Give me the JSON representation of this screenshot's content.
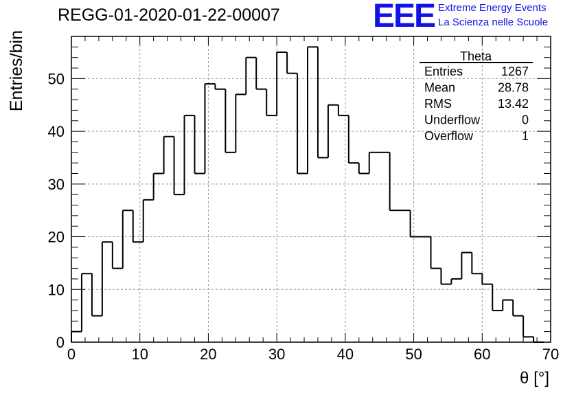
{
  "header": {
    "title": "REGG-01-2020-01-22-00007",
    "logo_text": "EEE",
    "logo_line1": "Extreme Energy Events",
    "logo_line2": "La Scienza nelle Scuole",
    "logo_color": "#1212e6"
  },
  "chart_data": {
    "type": "histogram",
    "xlabel": "θ [°]",
    "ylabel": "Entries/bin",
    "xlim": [
      0,
      70
    ],
    "ylim": [
      0,
      58
    ],
    "grid": true,
    "bin_width": 1.5,
    "x_ticks": [
      0,
      10,
      20,
      30,
      40,
      50,
      60,
      70
    ],
    "y_ticks": [
      0,
      10,
      20,
      30,
      40,
      50
    ],
    "values": [
      2,
      13,
      5,
      19,
      14,
      25,
      19,
      27,
      32,
      39,
      28,
      43,
      32,
      49,
      48,
      36,
      47,
      54,
      48,
      43,
      55,
      51,
      32,
      56,
      35,
      45,
      43,
      34,
      32,
      36,
      36,
      25,
      25,
      20,
      20,
      14,
      11,
      12,
      17,
      13,
      11,
      6,
      8,
      5,
      1,
      0
    ],
    "stats": {
      "name": "Theta",
      "placement": "top-right",
      "rows": [
        {
          "label": "Entries",
          "value": "1267"
        },
        {
          "label": "Mean",
          "value": "28.78"
        },
        {
          "label": "RMS",
          "value": "13.42"
        },
        {
          "label": "Underflow",
          "value": "0"
        },
        {
          "label": "Overflow",
          "value": "1"
        }
      ]
    }
  }
}
